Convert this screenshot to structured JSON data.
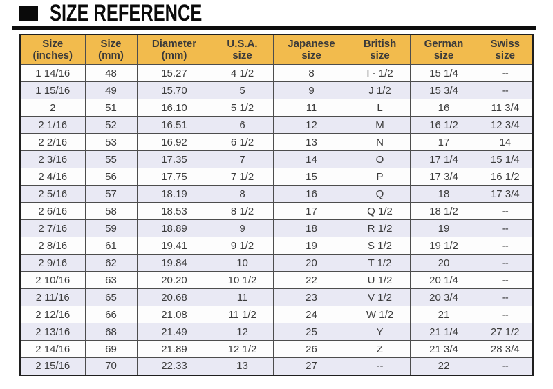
{
  "page_title": "SIZE REFERENCE",
  "colors": {
    "header_bg": "#f2bb4d",
    "row_alt_bg": "#e9e9f4",
    "text": "#3b3b3b",
    "border": "#4d4d4d",
    "title": "#0a0a0a"
  },
  "icons": {
    "title_square": "black-square-bullet-icon"
  },
  "table": {
    "headers": [
      {
        "line1": "Size",
        "line2": "(inches)"
      },
      {
        "line1": "Size",
        "line2": "(mm)"
      },
      {
        "line1": "Diameter",
        "line2": "(mm)"
      },
      {
        "line1": "U.S.A.",
        "line2": "size"
      },
      {
        "line1": "Japanese",
        "line2": "size"
      },
      {
        "line1": "British",
        "line2": "size"
      },
      {
        "line1": "German",
        "line2": "size"
      },
      {
        "line1": "Swiss",
        "line2": "size"
      }
    ],
    "rows": [
      [
        "1 14/16",
        "48",
        "15.27",
        "4 1/2",
        "8",
        "I - 1/2",
        "15 1/4",
        "--"
      ],
      [
        "1 15/16",
        "49",
        "15.70",
        "5",
        "9",
        "J 1/2",
        "15 3/4",
        "--"
      ],
      [
        "2",
        "51",
        "16.10",
        "5 1/2",
        "11",
        "L",
        "16",
        "11 3/4"
      ],
      [
        "2 1/16",
        "52",
        "16.51",
        "6",
        "12",
        "M",
        "16 1/2",
        "12 3/4"
      ],
      [
        "2 2/16",
        "53",
        "16.92",
        "6 1/2",
        "13",
        "N",
        "17",
        "14"
      ],
      [
        "2 3/16",
        "55",
        "17.35",
        "7",
        "14",
        "O",
        "17 1/4",
        "15 1/4"
      ],
      [
        "2 4/16",
        "56",
        "17.75",
        "7 1/2",
        "15",
        "P",
        "17 3/4",
        "16 1/2"
      ],
      [
        "2 5/16",
        "57",
        "18.19",
        "8",
        "16",
        "Q",
        "18",
        "17 3/4"
      ],
      [
        "2 6/16",
        "58",
        "18.53",
        "8 1/2",
        "17",
        "Q 1/2",
        "18 1/2",
        "--"
      ],
      [
        "2 7/16",
        "59",
        "18.89",
        "9",
        "18",
        "R 1/2",
        "19",
        "--"
      ],
      [
        "2 8/16",
        "61",
        "19.41",
        "9 1/2",
        "19",
        "S 1/2",
        "19 1/2",
        "--"
      ],
      [
        "2 9/16",
        "62",
        "19.84",
        "10",
        "20",
        "T 1/2",
        "20",
        "--"
      ],
      [
        "2 10/16",
        "63",
        "20.20",
        "10 1/2",
        "22",
        "U 1/2",
        "20 1/4",
        "--"
      ],
      [
        "2 11/16",
        "65",
        "20.68",
        "11",
        "23",
        "V 1/2",
        "20 3/4",
        "--"
      ],
      [
        "2 12/16",
        "66",
        "21.08",
        "11 1/2",
        "24",
        "W 1/2",
        "21",
        "--"
      ],
      [
        "2 13/16",
        "68",
        "21.49",
        "12",
        "25",
        "Y",
        "21 1/4",
        "27 1/2"
      ],
      [
        "2 14/16",
        "69",
        "21.89",
        "12 1/2",
        "26",
        "Z",
        "21 3/4",
        "28 3/4"
      ],
      [
        "2 15/16",
        "70",
        "22.33",
        "13",
        "27",
        "--",
        "22",
        "--"
      ]
    ]
  }
}
